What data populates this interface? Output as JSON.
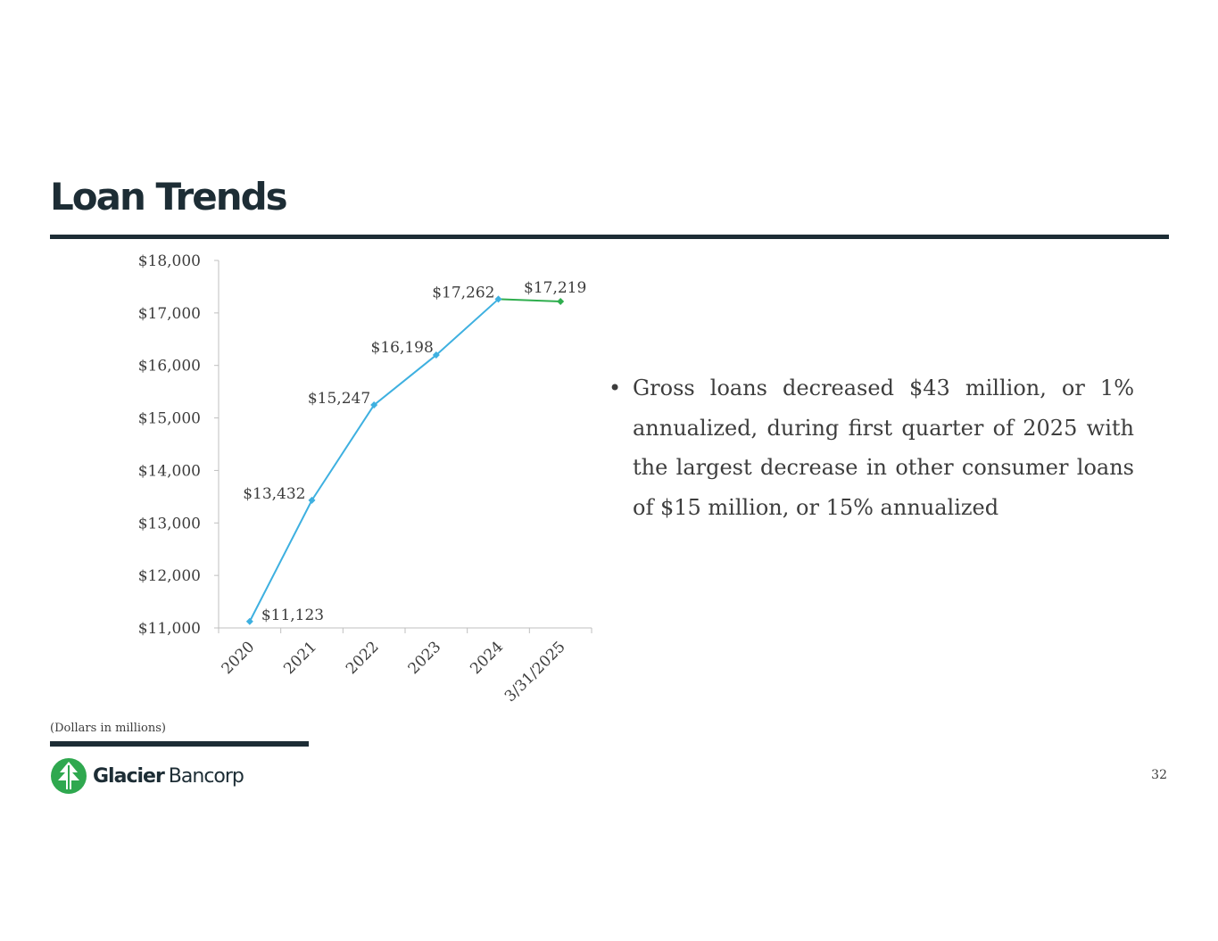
{
  "slide": {
    "title": "Loan Trends",
    "footnote": "(Dollars in millions)",
    "page_number": "32",
    "bullet": "Gross loans decreased $43 million, or 1% annualized, during first quarter of 2025 with the largest decrease in other consumer loans of $15 million, or 15% annualized"
  },
  "logo": {
    "word1": "Glacier",
    "word2": "Bancorp",
    "icon": "evergreen-tree-logo-icon",
    "color": "#2fa84f"
  },
  "chart_data": {
    "type": "line",
    "categories": [
      "2020",
      "2021",
      "2022",
      "2023",
      "2024",
      "3/31/2025"
    ],
    "values": [
      11123,
      13432,
      15247,
      16198,
      17262,
      17219
    ],
    "data_labels": [
      "$11,123",
      "$13,432",
      "$15,247",
      "$16,198",
      "$17,262",
      "$17,219"
    ],
    "ylim": [
      11000,
      18000
    ],
    "yticks": [
      11000,
      12000,
      13000,
      14000,
      15000,
      16000,
      17000,
      18000
    ],
    "ytick_labels": [
      "$11,000",
      "$12,000",
      "$13,000",
      "$14,000",
      "$15,000",
      "$16,000",
      "$17,000",
      "$18,000"
    ],
    "colors": {
      "annual": "#3eb0e0",
      "quarter": "#2fae4e",
      "axis": "#bfbfbf"
    },
    "grid": false
  }
}
